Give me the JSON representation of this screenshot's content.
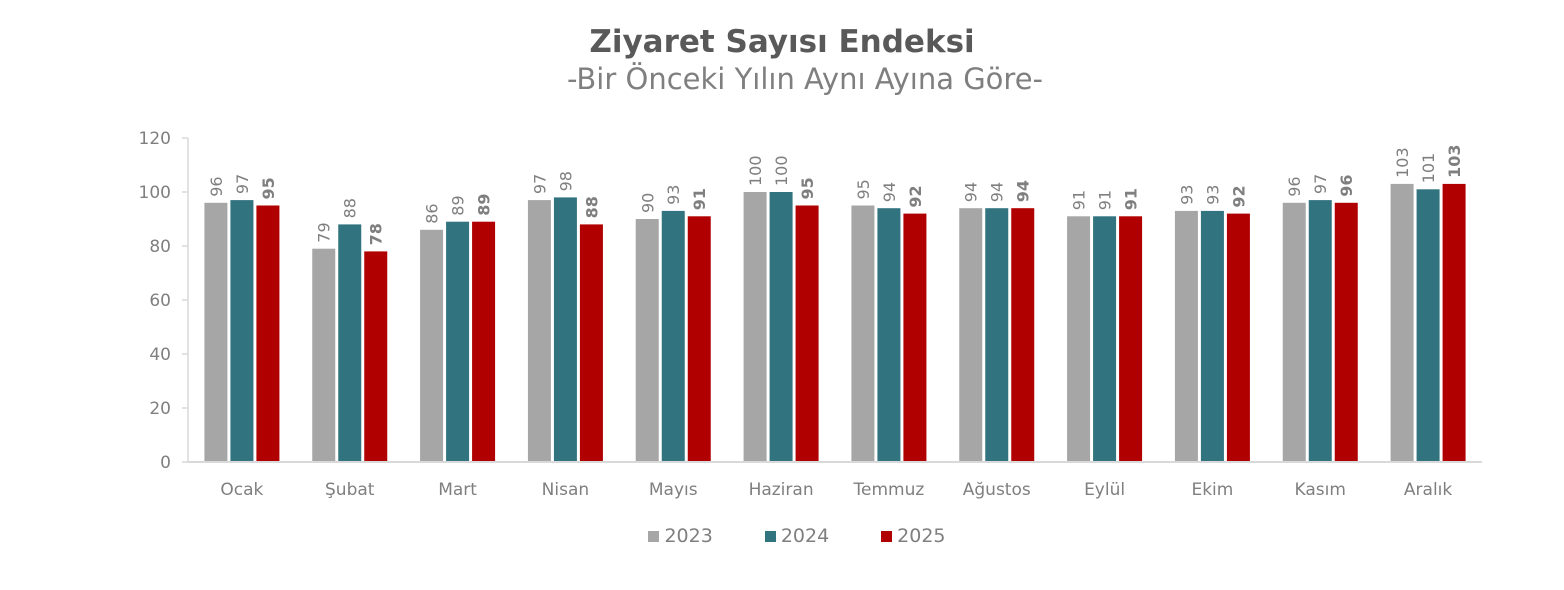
{
  "title": "Ziyaret Sayısı Endeksi",
  "subtitle": "-Bir Önceki Yılın Aynı Ayına Göre-",
  "legend": [
    {
      "label": "2023",
      "color": "#a6a6a6"
    },
    {
      "label": "2024",
      "color": "#31737f"
    },
    {
      "label": "2025",
      "color": "#b00000"
    }
  ],
  "chart_data": {
    "type": "bar",
    "title": "Ziyaret Sayısı Endeksi",
    "subtitle": "-Bir Önceki Yılın Aynı Ayına Göre-",
    "xlabel": "",
    "ylabel": "",
    "ylim": [
      0,
      120
    ],
    "yticks": [
      0,
      20,
      40,
      60,
      80,
      100,
      120
    ],
    "grid": false,
    "legend_position": "bottom",
    "categories": [
      "Ocak",
      "Şubat",
      "Mart",
      "Nisan",
      "Mayıs",
      "Haziran",
      "Temmuz",
      "Ağustos",
      "Eylül",
      "Ekim",
      "Kasım",
      "Aralık"
    ],
    "series": [
      {
        "name": "2023",
        "color": "#a6a6a6",
        "values": [
          96,
          79,
          86,
          97,
          90,
          100,
          95,
          94,
          91,
          93,
          96,
          103
        ]
      },
      {
        "name": "2024",
        "color": "#31737f",
        "values": [
          97,
          88,
          89,
          98,
          93,
          100,
          94,
          94,
          91,
          93,
          97,
          101
        ]
      },
      {
        "name": "2025",
        "color": "#b00000",
        "values": [
          95,
          78,
          89,
          88,
          91,
          95,
          92,
          94,
          91,
          92,
          96,
          103
        ]
      }
    ],
    "data_labels": "rotated -90°, 2025 series bold"
  }
}
